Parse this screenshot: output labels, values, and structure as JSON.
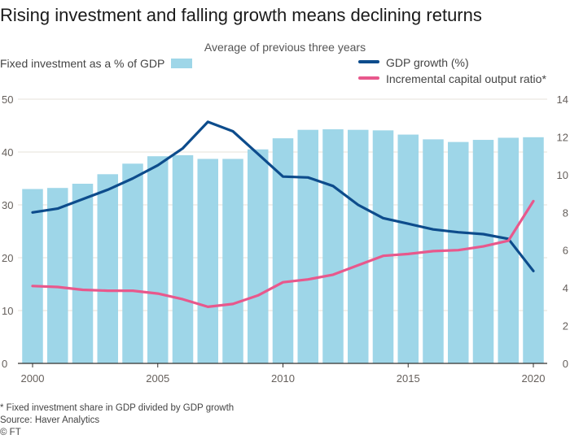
{
  "title": "Rising investment and falling growth means declining returns",
  "subtitle": "Average of previous three years",
  "legend": {
    "bar_label": "Fixed investment as a % of GDP",
    "gdp_label": "GDP growth (%)",
    "icor_label": "Incremental capital output ratio*"
  },
  "footnotes": {
    "note": "* Fixed investment share in GDP divided by GDP growth",
    "source": "Source: Haver Analytics",
    "credit": "© FT"
  },
  "colors": {
    "bars": "#9ed6e8",
    "gdp": "#0d4c8c",
    "icor": "#e8588c",
    "grid": "#e6e0da",
    "text": "#66605c"
  },
  "chart_data": {
    "type": "bar",
    "x": [
      2000,
      2001,
      2002,
      2003,
      2004,
      2005,
      2006,
      2007,
      2008,
      2009,
      2010,
      2011,
      2012,
      2013,
      2014,
      2015,
      2016,
      2017,
      2018,
      2019,
      2020
    ],
    "xticks": [
      "2000",
      "2005",
      "2010",
      "2015",
      "2020"
    ],
    "yticks_left": [
      "0",
      "10",
      "20",
      "30",
      "40",
      "50"
    ],
    "yticks_right": [
      "0",
      "2",
      "4",
      "6",
      "8",
      "10",
      "12",
      "14"
    ],
    "ylim_left": [
      0,
      50
    ],
    "ylim_right": [
      0,
      14
    ],
    "grid": true,
    "series": [
      {
        "name": "Fixed investment as a % of GDP",
        "type": "bar",
        "axis": "left",
        "values": [
          33.0,
          33.2,
          34.0,
          35.8,
          37.8,
          39.2,
          39.4,
          38.7,
          38.7,
          40.5,
          42.6,
          44.2,
          44.3,
          44.2,
          44.1,
          43.3,
          42.4,
          41.9,
          42.3,
          42.7,
          42.8
        ]
      },
      {
        "name": "GDP growth (%)",
        "type": "line",
        "axis": "right",
        "values": [
          8.0,
          8.2,
          8.7,
          9.2,
          9.8,
          10.5,
          11.4,
          12.8,
          12.3,
          11.1,
          9.9,
          9.85,
          9.4,
          8.4,
          7.7,
          7.4,
          7.1,
          6.95,
          6.85,
          6.6,
          4.9
        ]
      },
      {
        "name": "Incremental capital output ratio*",
        "type": "line",
        "axis": "right",
        "values": [
          4.1,
          4.05,
          3.9,
          3.85,
          3.85,
          3.7,
          3.4,
          3.0,
          3.15,
          3.6,
          4.3,
          4.45,
          4.7,
          5.2,
          5.7,
          5.8,
          5.95,
          6.0,
          6.2,
          6.5,
          8.6
        ]
      }
    ]
  }
}
